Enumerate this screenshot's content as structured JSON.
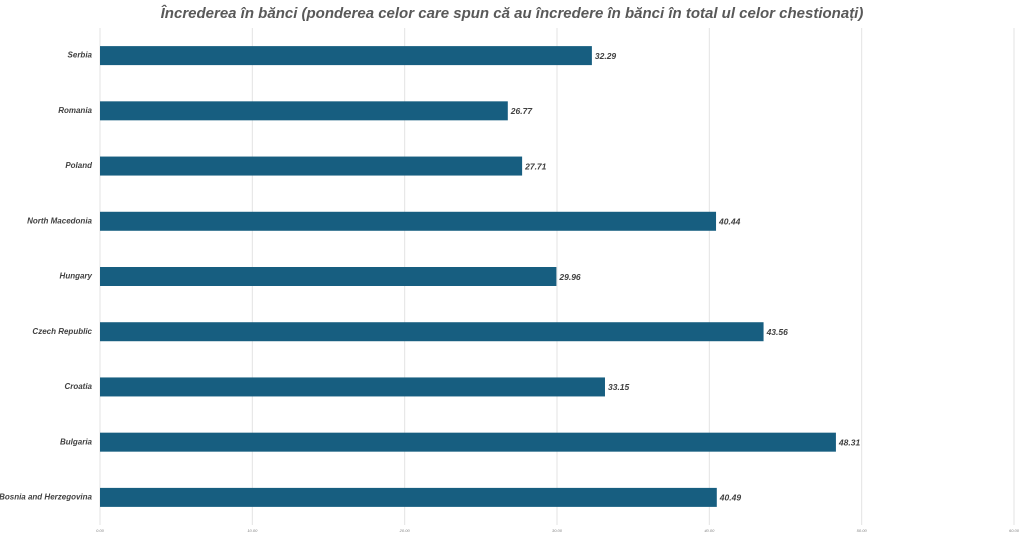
{
  "chart_data": {
    "type": "barh",
    "title": "Încrederea în bănci (ponderea celor care spun că au încredere în bănci în total ul celor chestionați)",
    "categories": [
      "Serbia",
      "Romania",
      "Poland",
      "North Macedonia",
      "Hungary",
      "Czech Republic",
      "Croatia",
      "Bulgaria",
      "Bosnia and Herzegovina"
    ],
    "values": [
      32.29,
      26.77,
      27.71,
      40.44,
      29.96,
      43.56,
      33.15,
      48.31,
      40.49
    ],
    "color": "#175e80",
    "xlim": [
      0,
      60
    ],
    "xticks": [
      {
        "value": 0,
        "label": "0.00"
      },
      {
        "value": 10,
        "label": "10.00"
      },
      {
        "value": 20,
        "label": "20.00"
      },
      {
        "value": 30,
        "label": "30.00"
      },
      {
        "value": 40,
        "label": "40.00"
      },
      {
        "value": 50,
        "label": "50.00"
      },
      {
        "value": 60,
        "label": "60.00"
      }
    ],
    "grid": true
  }
}
